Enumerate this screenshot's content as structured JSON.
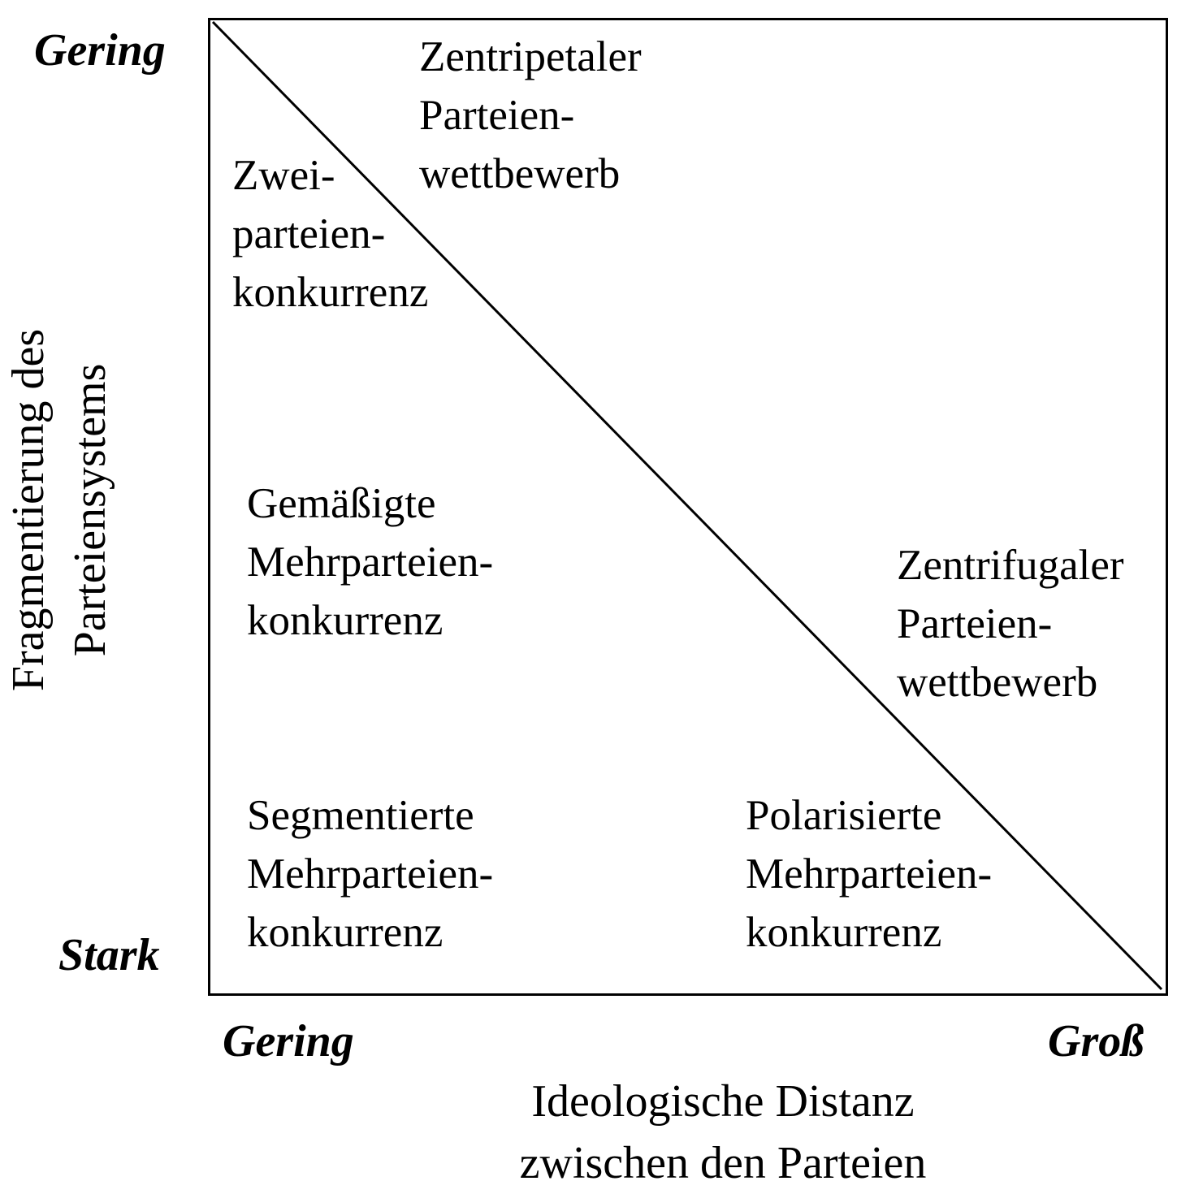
{
  "diagram": {
    "y_axis": {
      "title_lines": [
        "Fragmentierung des",
        "Parteiensystems"
      ],
      "top_label": "Gering",
      "bottom_label": "Stark"
    },
    "x_axis": {
      "title_lines": [
        "Ideologische Distanz",
        "zwischen den Parteien"
      ],
      "left_label": "Gering",
      "right_label": "Groß"
    },
    "regions": {
      "zentripetal": [
        "Zentripetaler",
        "Parteien-",
        "wettbewerb"
      ],
      "zweiparteien": [
        "Zwei-",
        "parteien-",
        "konkurrenz"
      ],
      "gemaessigt": [
        "Gemäßigte",
        "Mehrparteien-",
        "konkurrenz"
      ],
      "zentrifugal": [
        "Zentrifugaler",
        "Parteien-",
        "wettbewerb"
      ],
      "segmentiert": [
        "Segmentierte",
        "Mehrparteien-",
        "konkurrenz"
      ],
      "polarisiert": [
        "Polarisierte",
        "Mehrparteien-",
        "konkurrenz"
      ]
    }
  }
}
